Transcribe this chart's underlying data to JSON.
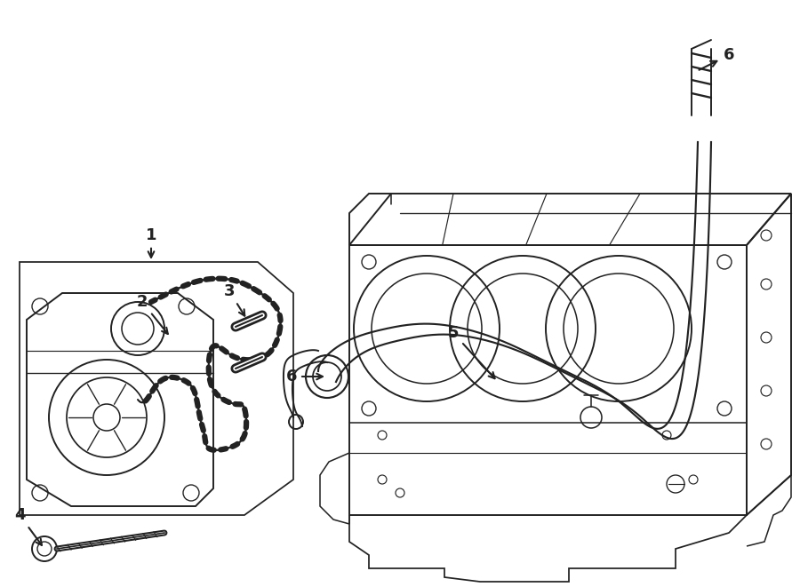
{
  "bg_color": "#ffffff",
  "line_color": "#222222",
  "label_fontsize": 13,
  "fig_width": 9.0,
  "fig_height": 6.61,
  "dpi": 100
}
